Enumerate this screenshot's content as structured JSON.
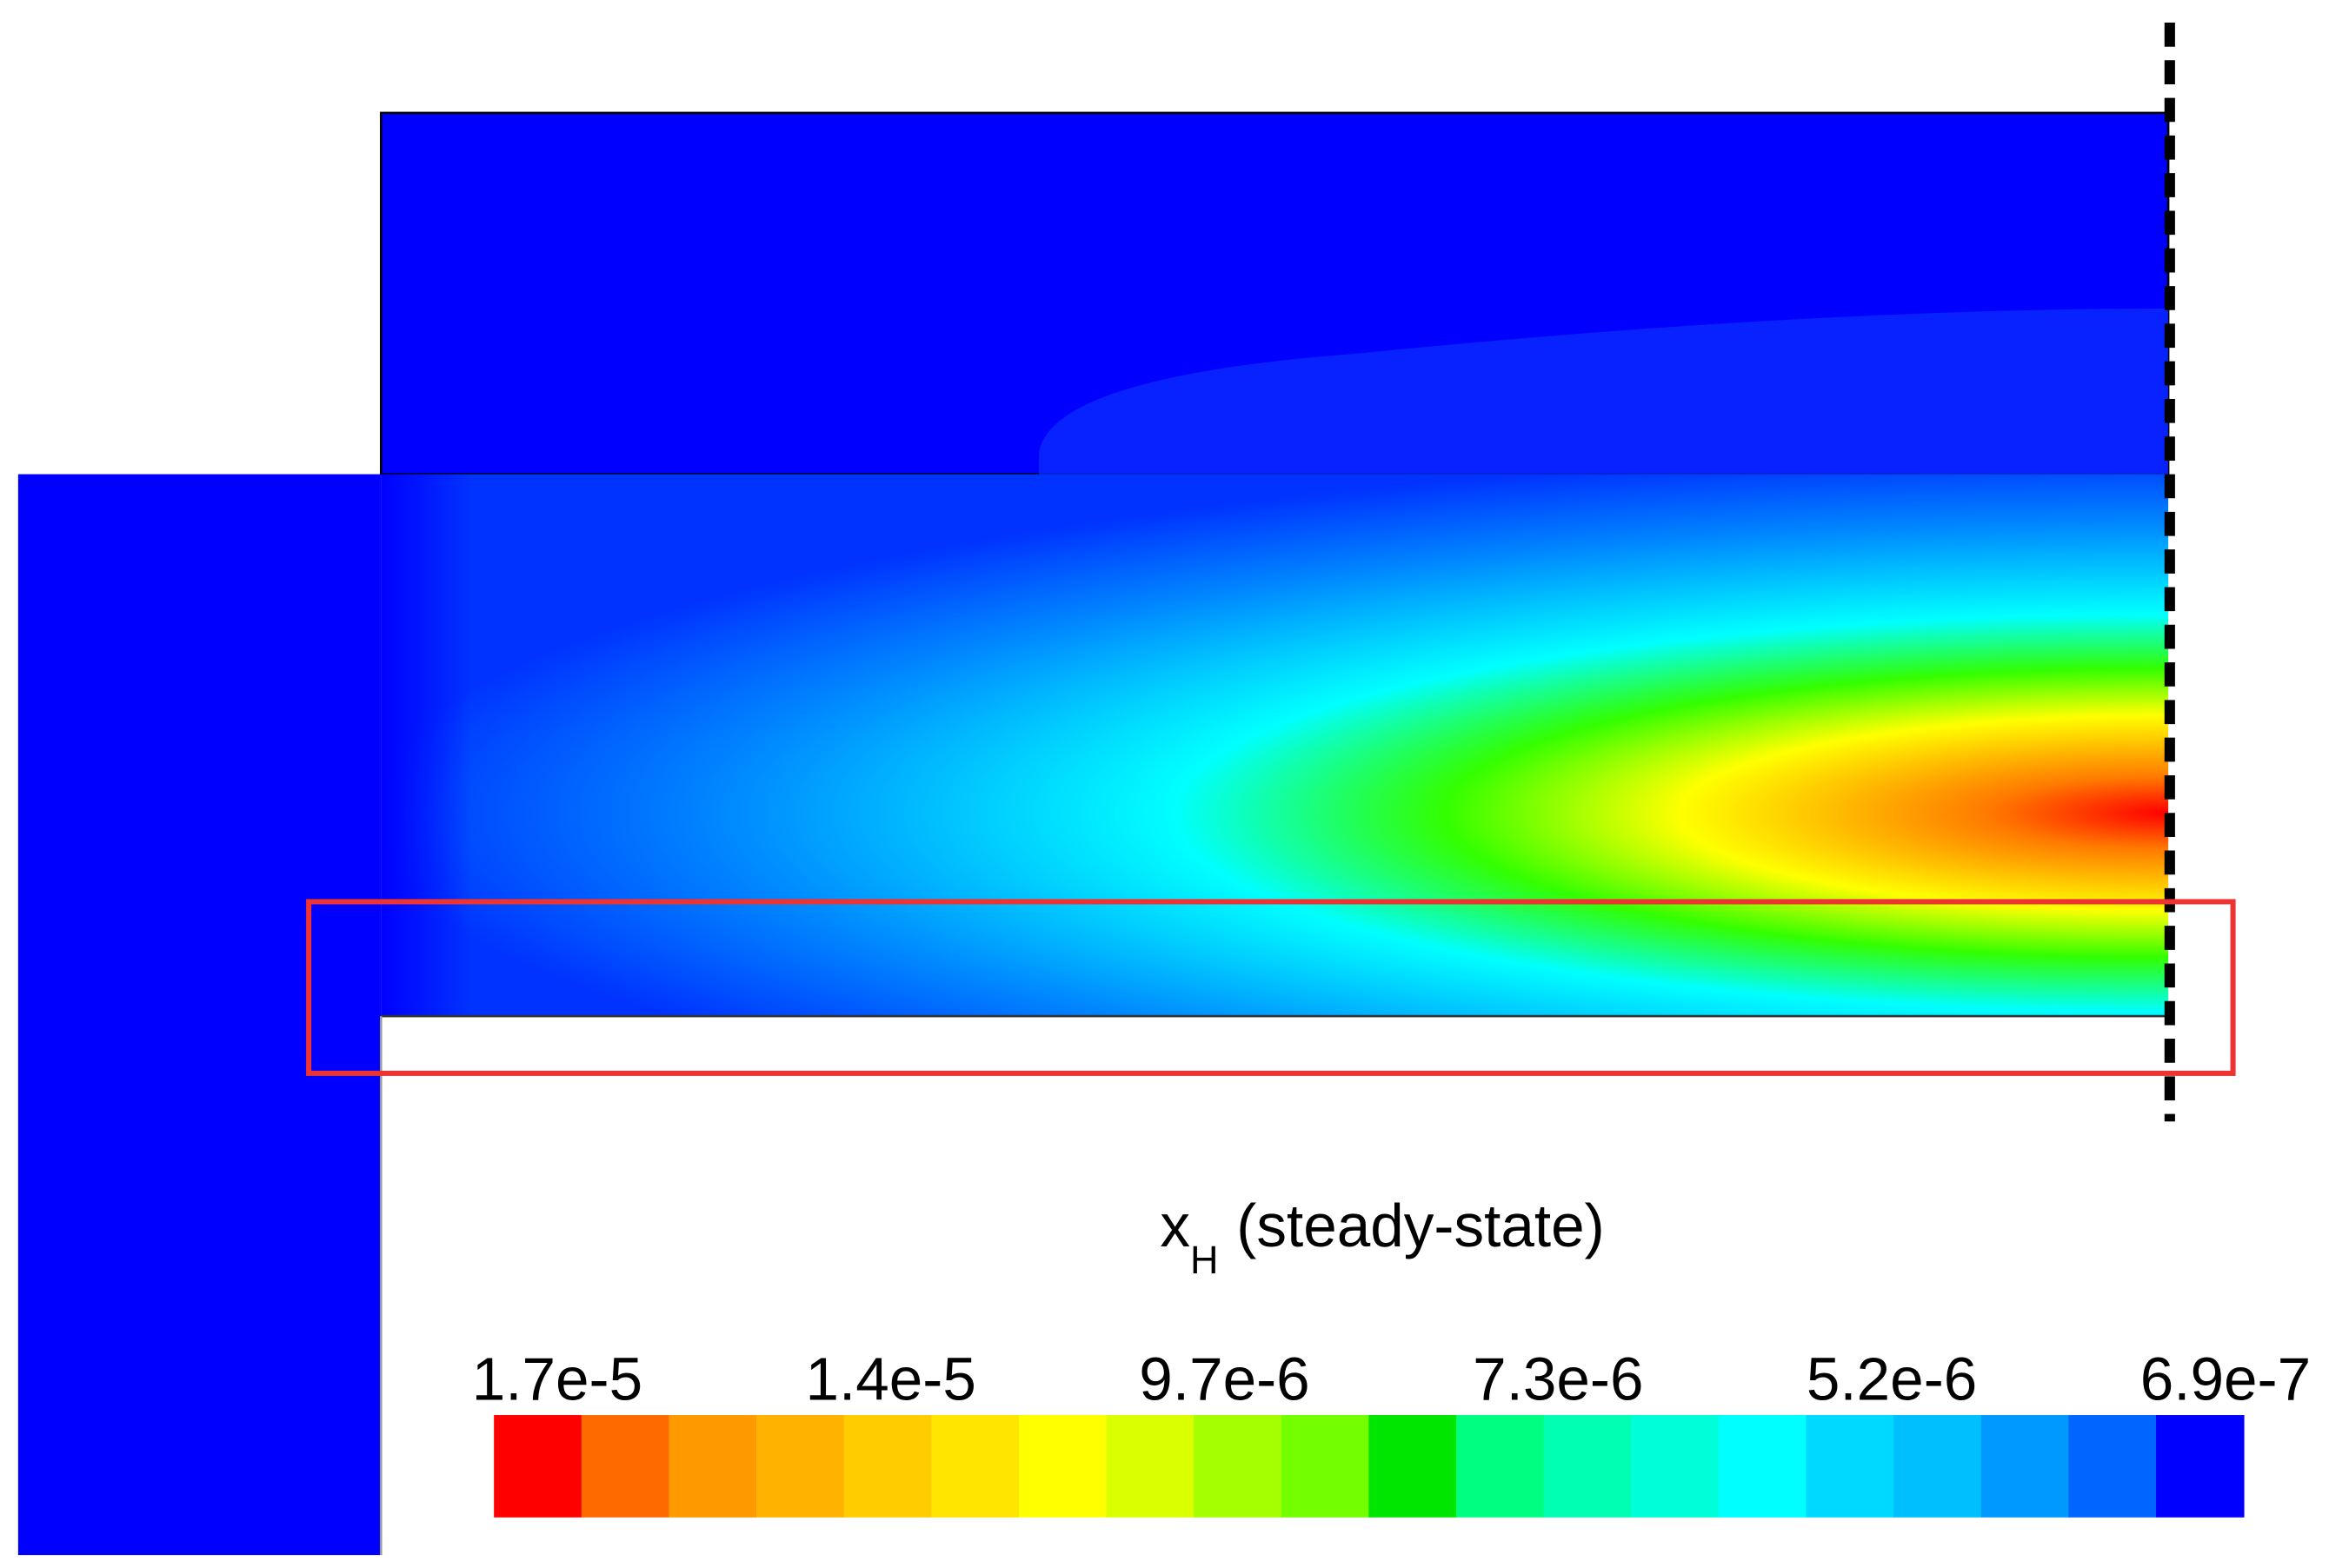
{
  "chart_data": {
    "type": "contour",
    "title": {
      "main": "x",
      "subscript": "H",
      "suffix": "(steady-state)"
    },
    "colorbar": {
      "labels": [
        "1.7e-5",
        "1.4e-5",
        "9.7e-6",
        "7.3e-6",
        "5.2e-6",
        "6.9e-7"
      ],
      "colors": [
        "#ff0000",
        "#ff6a00",
        "#ff9900",
        "#ffb300",
        "#ffcc00",
        "#ffe600",
        "#ffff00",
        "#d9ff00",
        "#a6ff00",
        "#73ff00",
        "#00e600",
        "#00ff80",
        "#00ffb3",
        "#00ffd9",
        "#00ffff",
        "#00d9ff",
        "#00bfff",
        "#0099ff",
        "#0066ff",
        "#0000ff"
      ]
    }
  }
}
